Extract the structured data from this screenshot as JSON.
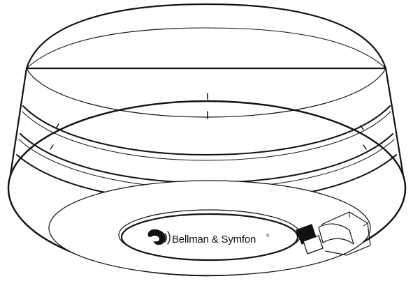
{
  "device": {
    "brand_name": "Bellman & Symfon",
    "registered_mark": "®",
    "logo_icon": "bellman-symfon-ear-logo-icon",
    "line_color": "#111111",
    "fill_color": "#ffffff"
  }
}
